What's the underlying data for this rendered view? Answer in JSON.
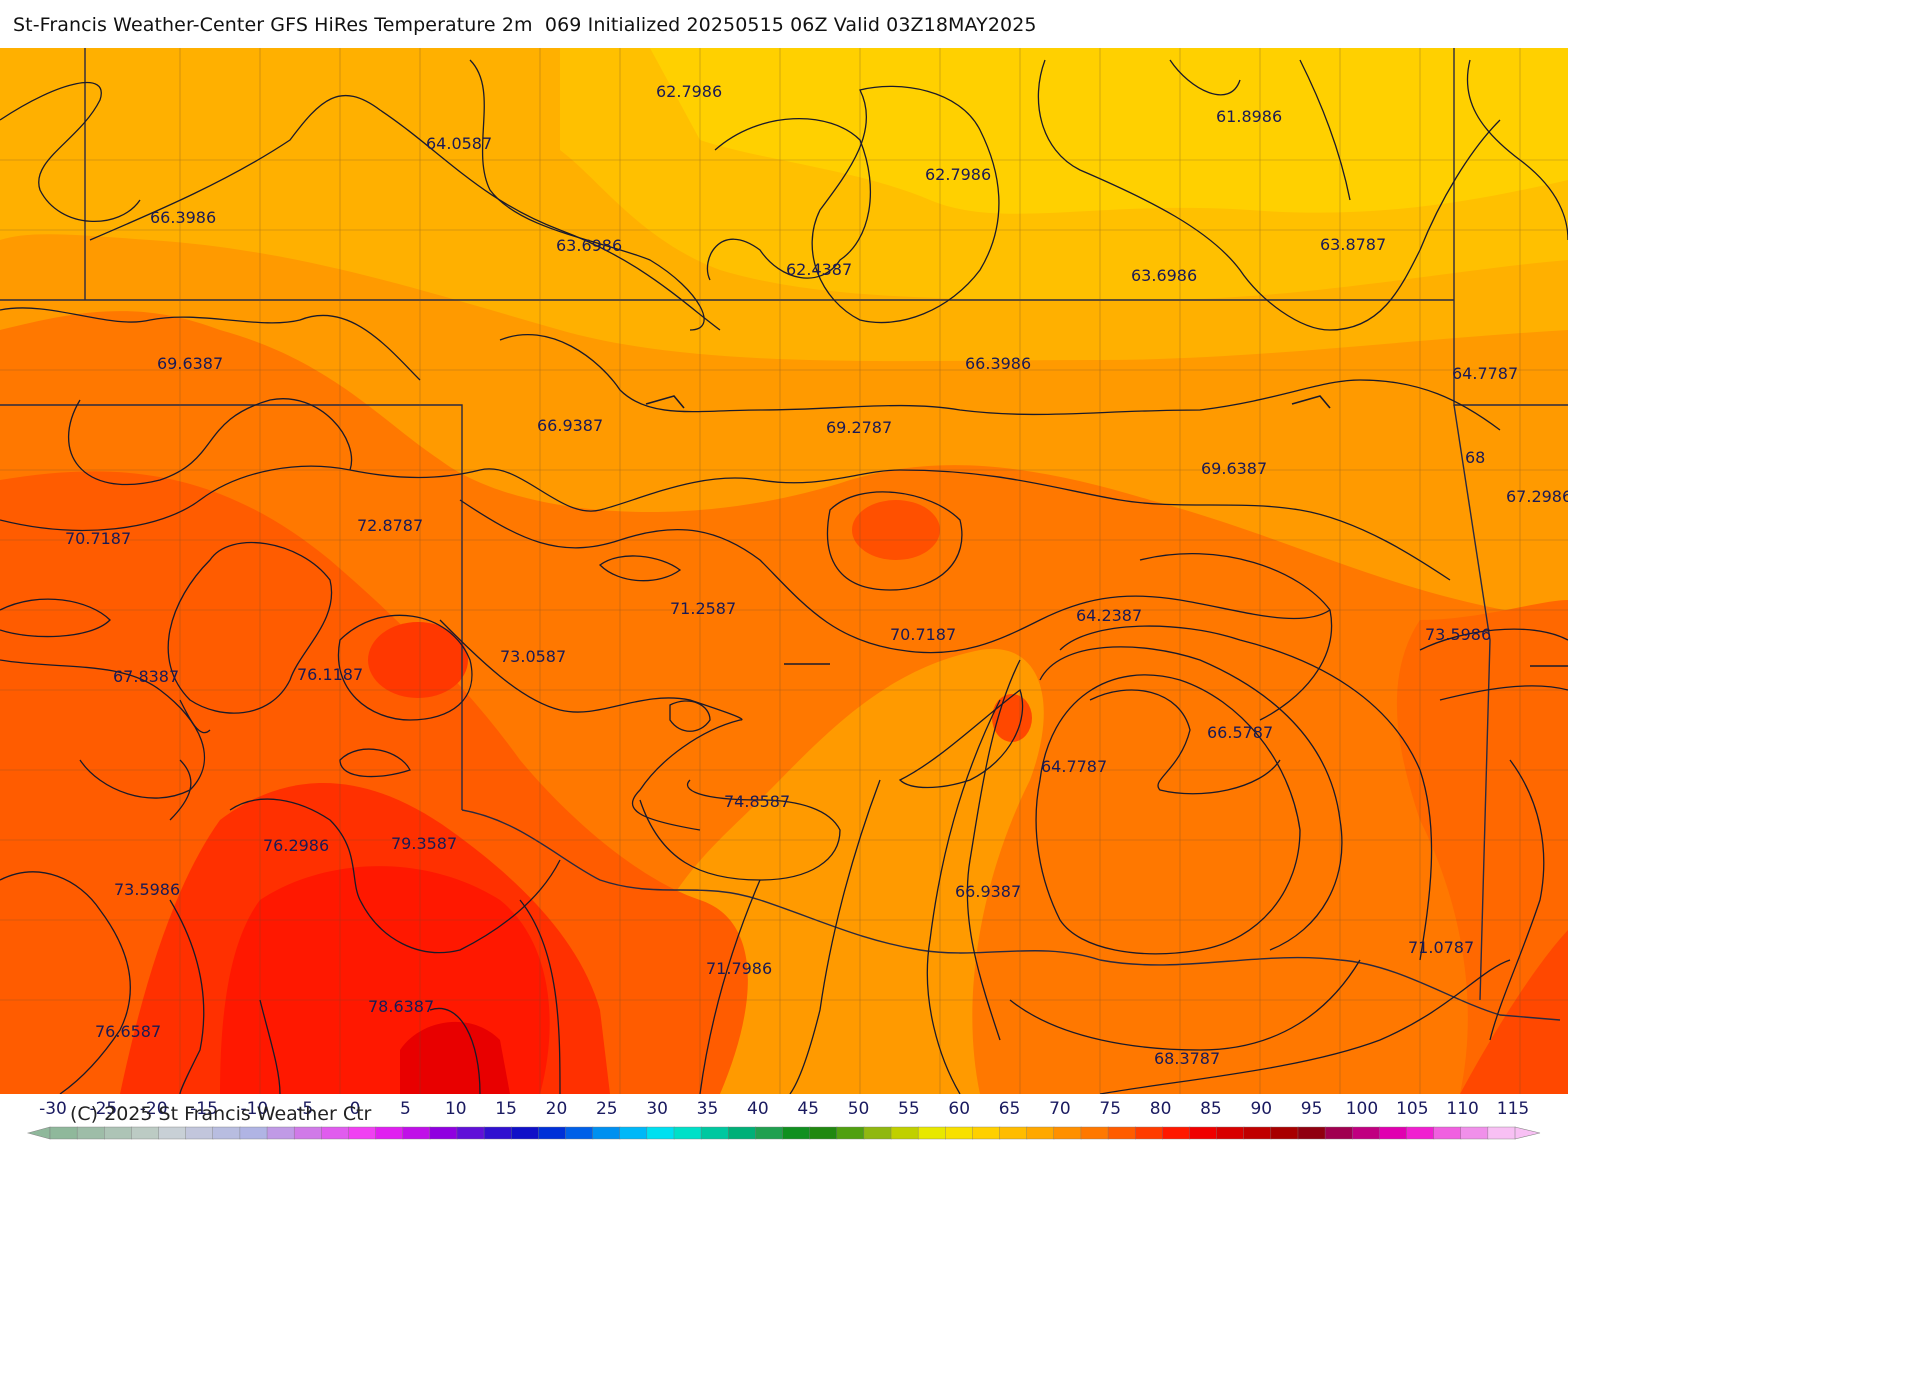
{
  "header": {
    "title": "St-Francis Weather-Center GFS HiRes Temperature 2m  069 Initialized 20250515 06Z Valid 03Z18MAY2025"
  },
  "map": {
    "contour_labels": [
      {
        "text": "62.7986"
      },
      {
        "text": "64.0587"
      },
      {
        "text": "61.8986"
      },
      {
        "text": "62.7986"
      },
      {
        "text": "66.3986"
      },
      {
        "text": "63.6986"
      },
      {
        "text": "62.4387"
      },
      {
        "text": "63.6986"
      },
      {
        "text": "63.8787"
      },
      {
        "text": "69.6387"
      },
      {
        "text": "66.3986"
      },
      {
        "text": "64.7787"
      },
      {
        "text": "66.9387"
      },
      {
        "text": "69.2787"
      },
      {
        "text": "69.6387"
      },
      {
        "text": "68"
      },
      {
        "text": "67.2986"
      },
      {
        "text": "70.7187"
      },
      {
        "text": "72.8787"
      },
      {
        "text": "71.2587"
      },
      {
        "text": "70.7187"
      },
      {
        "text": "64.2387"
      },
      {
        "text": "73.5986"
      },
      {
        "text": "67.8387"
      },
      {
        "text": "76.1187"
      },
      {
        "text": "73.0587"
      },
      {
        "text": "66.5787"
      },
      {
        "text": "64.7787"
      },
      {
        "text": "74.8587"
      },
      {
        "text": "76.2986"
      },
      {
        "text": "79.3587"
      },
      {
        "text": "73.5986"
      },
      {
        "text": "66.9387"
      },
      {
        "text": "71.0787"
      },
      {
        "text": "71.7986"
      },
      {
        "text": "78.6387"
      },
      {
        "text": "76.6587"
      },
      {
        "text": "68.3787"
      }
    ]
  },
  "colorbar": {
    "ticks": [
      "-30",
      "-25",
      "-20",
      "-15",
      "-10",
      "-5",
      "0",
      "5",
      "10",
      "15",
      "20",
      "25",
      "30",
      "35",
      "40",
      "45",
      "50",
      "55",
      "60",
      "65",
      "70",
      "75",
      "80",
      "85",
      "90",
      "95",
      "100",
      "105",
      "110",
      "115"
    ],
    "colors": [
      "#8fb89b",
      "#9ebda8",
      "#adc4b6",
      "#bccbc4",
      "#c8d0d6",
      "#c2c6dc",
      "#b8bde0",
      "#b0b4e4",
      "#c09ae6",
      "#d07ae8",
      "#e05cee",
      "#f040f2",
      "#e020f0",
      "#c010e8",
      "#9000e0",
      "#6010d8",
      "#3010d0",
      "#1010c8",
      "#0030d8",
      "#0060e8",
      "#0090f0",
      "#00b8f8",
      "#00e0f0",
      "#00e0c8",
      "#00c8a0",
      "#00b078",
      "#20a050",
      "#109020",
      "#208810",
      "#50a010",
      "#90b810",
      "#c0d000",
      "#e8e800",
      "#f8e000",
      "#ffd000",
      "#ffbc00",
      "#ffa800",
      "#ff9000",
      "#ff7800",
      "#ff5c00",
      "#ff3c00",
      "#ff1800",
      "#f00000",
      "#d80000",
      "#c00000",
      "#a80000",
      "#900010",
      "#a00050",
      "#c00080",
      "#e000b0",
      "#f020d0",
      "#f060e0",
      "#f090ea",
      "#f8c0f4"
    ],
    "copyright": "(C) 2025 St Francis Weather Ctr"
  }
}
